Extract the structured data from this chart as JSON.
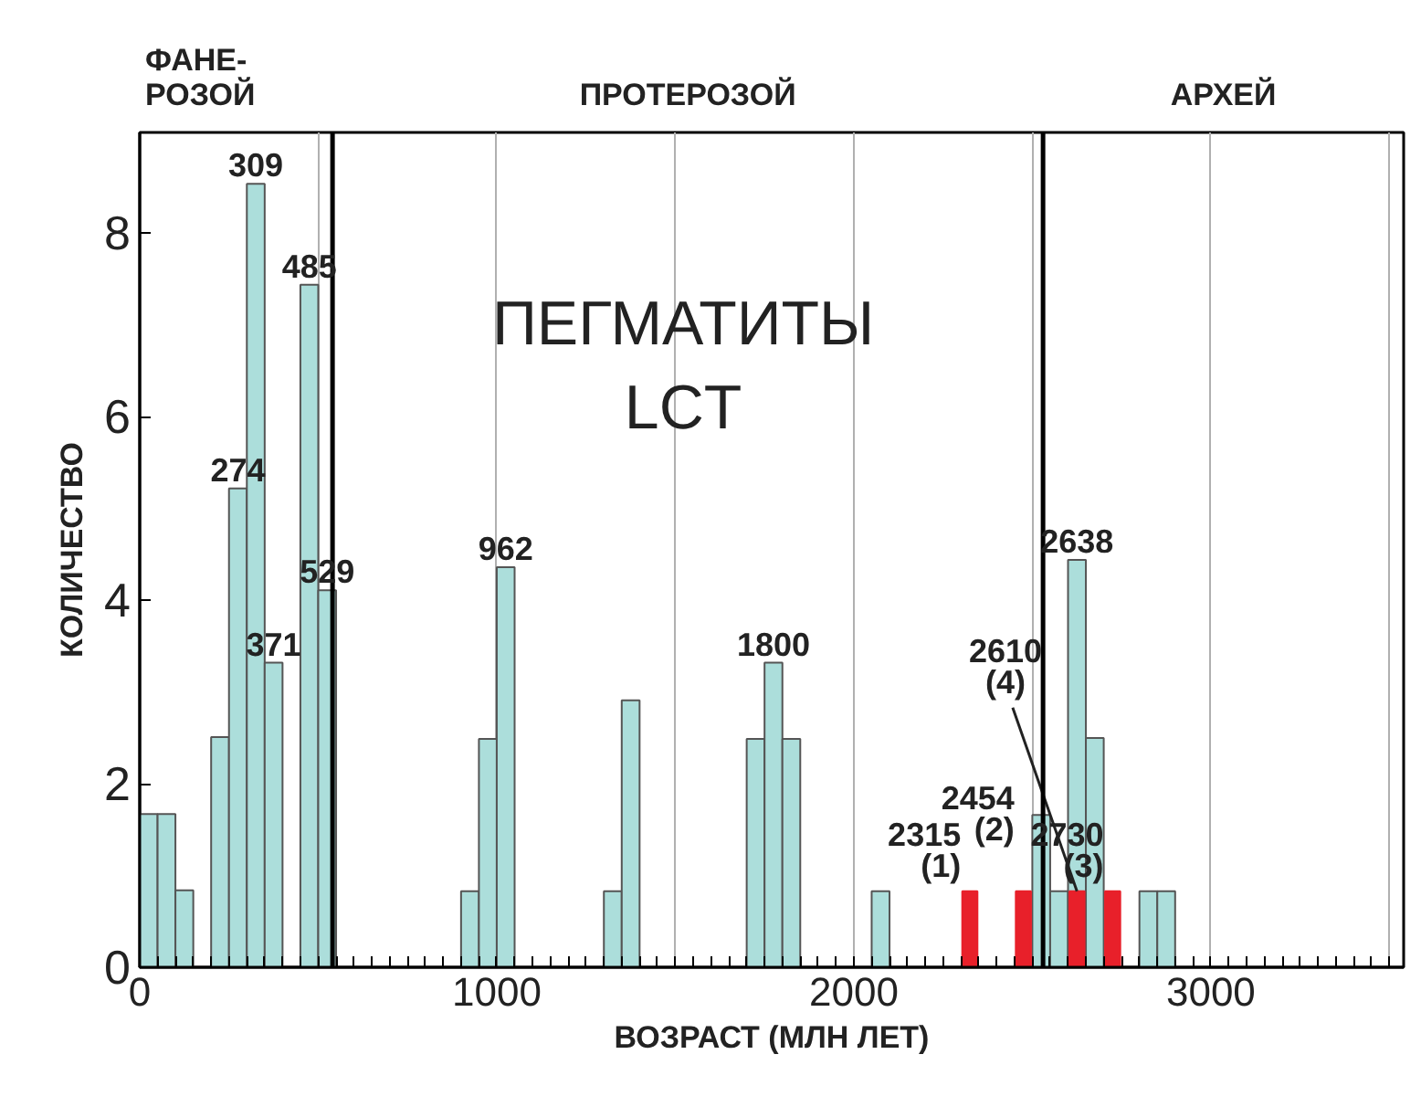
{
  "chart_data": {
    "type": "bar",
    "title": "ПЕГМАТИТЫ\nLCT",
    "xlabel": "ВОЗРАСТ (МЛН ЛЕТ)",
    "ylabel": "КОЛИЧЕСТВО",
    "series": [
      {
        "color": "#acdedb",
        "x": [
          25,
          75,
          125,
          225,
          275,
          325,
          375,
          475,
          525,
          925,
          975,
          1025,
          1325,
          1375,
          1725,
          1775,
          1825,
          2075,
          2525,
          2575,
          2625,
          2675,
          2825,
          2875
        ],
        "values": [
          1.67,
          1.67,
          0.84,
          2.51,
          5.22,
          8.54,
          3.32,
          7.44,
          4.11,
          0.83,
          2.49,
          4.36,
          0.83,
          2.91,
          2.49,
          3.32,
          2.49,
          0.83,
          1.66,
          0.83,
          4.44,
          2.5,
          0.83,
          0.83
        ]
      },
      {
        "color": "#e8202a",
        "x": [
          2325,
          2475,
          2625,
          2725
        ],
        "values": [
          0.83,
          0.83,
          0.83,
          0.83
        ]
      }
    ],
    "xlim": [
      0,
      3540
    ],
    "ylim": [
      0,
      9.1
    ],
    "xticks": [
      0,
      {
        "value": 500,
        "label": null
      },
      1000,
      {
        "value": 1500,
        "label": null
      },
      2000,
      {
        "value": 2500,
        "label": null
      },
      3000,
      {
        "value": 3500,
        "label": null
      }
    ],
    "yticks": [
      0,
      2,
      4,
      6,
      8
    ],
    "grid": "x",
    "ref_lines": [
      {
        "axis": "x",
        "value": 540,
        "color": "#000000"
      },
      {
        "axis": "x",
        "value": 2530,
        "color": "#000000"
      }
    ],
    "annotations": [
      "ФАНЕ-\nРОЗОЙ",
      "ПРОТЕРОЗОЙ",
      "АРХЕЙ",
      {
        "text": "309",
        "x": 325,
        "y": 8.54
      },
      {
        "text": "485",
        "x": 475,
        "y": 7.44
      },
      {
        "text": "274",
        "x": 275,
        "y": 5.22
      },
      {
        "text": "371",
        "x": 375,
        "y": 3.32
      },
      {
        "text": "529",
        "x": 525,
        "y": 4.11
      },
      {
        "text": "962",
        "x": 1025,
        "y": 4.36
      },
      {
        "text": "1800",
        "x": 1775,
        "y": 3.32
      },
      {
        "text": "2315",
        "x": 2325,
        "y": 0.83
      },
      {
        "text": "(1)",
        "x": 2325,
        "y": 0.83
      },
      {
        "text": "2454",
        "x": 2475,
        "y": 0.83
      },
      {
        "text": "(2)",
        "x": 2475,
        "y": 0.83
      },
      {
        "text": "2610",
        "x": 2625,
        "y": 0.83
      },
      {
        "text": "(4)",
        "x": 2625,
        "y": 0.83
      },
      {
        "text": "2638",
        "x": 2625,
        "y": 4.44
      },
      {
        "text": "2730",
        "x": 2725,
        "y": 0.83
      },
      {
        "text": "(3)",
        "x": 2725,
        "y": 0.83
      }
    ]
  }
}
